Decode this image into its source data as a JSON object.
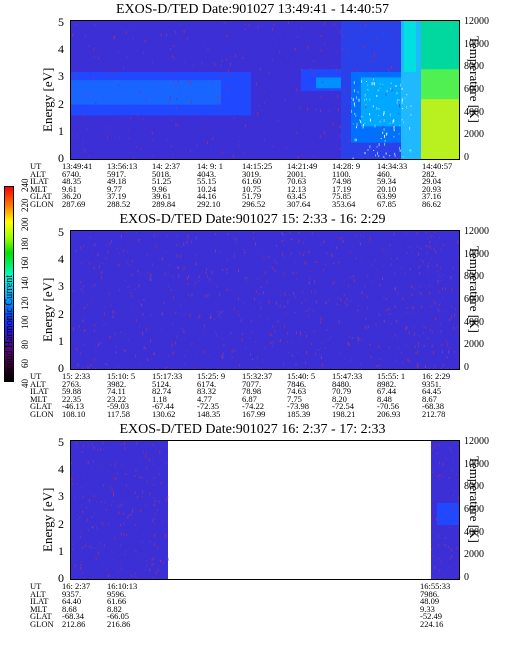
{
  "colorbar": {
    "label": "Second Harmonic Current",
    "ticks": [
      "40",
      "60",
      "80",
      "100",
      "120",
      "140",
      "160",
      "180",
      "200",
      "220",
      "240"
    ]
  },
  "panels": [
    {
      "title": "EXOS-D/TED   Date:901027  13:49:41 - 14:40:57",
      "ylabel": "Energy [eV]",
      "y2label": "Temperature [K]",
      "yticks": [
        "0",
        "1",
        "2",
        "3",
        "4",
        "5"
      ],
      "y2ticks": [
        "0",
        "2000",
        "4000",
        "6000",
        "8000",
        "10000",
        "12000"
      ],
      "orbit_labels": [
        "UT",
        "ALT",
        "ILAT",
        "MLT",
        "GLAT",
        "GLON"
      ],
      "orbit": [
        [
          "13:49:41",
          "6740.",
          "48.35",
          "9.61",
          "36.20",
          "287.69"
        ],
        [
          "13:56:13",
          "5917.",
          "49.18",
          "9.77",
          "37.19",
          "288.52"
        ],
        [
          "14: 2:37",
          "5018.",
          "51.25",
          "9.96",
          "39.61",
          "289.84"
        ],
        [
          "14: 9: 1",
          "4043.",
          "55.15",
          "10.24",
          "44.16",
          "292.10"
        ],
        [
          "14:15:25",
          "3019.",
          "61.60",
          "10.75",
          "51.79",
          "296.52"
        ],
        [
          "14:21:49",
          "2001.",
          "70.63",
          "12.13",
          "63.45",
          "307.64"
        ],
        [
          "14:28: 9",
          "1100.",
          "74.98",
          "17.19",
          "75.85",
          "353.64"
        ],
        [
          "14:34:33",
          "460.",
          "59.34",
          "20.10",
          "63.99",
          "67.85"
        ],
        [
          "14:40:57",
          "282.",
          "29.04",
          "20.93",
          "37.16",
          "86.62"
        ]
      ]
    },
    {
      "title": "EXOS-D/TED   Date:901027  15: 2:33 - 16: 2:29",
      "ylabel": "Energy [eV]",
      "y2label": "Temperature [K]",
      "yticks": [
        "0",
        "1",
        "2",
        "3",
        "4",
        "5"
      ],
      "y2ticks": [
        "0",
        "2000",
        "4000",
        "6000",
        "8000",
        "10000",
        "12000"
      ],
      "orbit_labels": [
        "UT",
        "ALT",
        "ILAT",
        "MLT",
        "GLAT",
        "GLON"
      ],
      "orbit": [
        [
          "15: 2:33",
          "2763.",
          "59.88",
          "22.35",
          "-46.13",
          "108.10"
        ],
        [
          "15:10: 5",
          "3982.",
          "74.11",
          "23.22",
          "-59.03",
          "117.58"
        ],
        [
          "15:17:33",
          "5124.",
          "82.74",
          "1.18",
          "-67.44",
          "130.62"
        ],
        [
          "15:25: 9",
          "6174.",
          "83.32",
          "4.77",
          "-72.35",
          "148.35"
        ],
        [
          "15:32:37",
          "7077.",
          "78.98",
          "6.87",
          "-74.22",
          "167.99"
        ],
        [
          "15:40: 5",
          "7846.",
          "74.63",
          "7.75",
          "-73.98",
          "185.39"
        ],
        [
          "15:47:33",
          "8480.",
          "70.79",
          "8.20",
          "-72.54",
          "198.21"
        ],
        [
          "15:55: 1",
          "8982.",
          "67.44",
          "8.48",
          "-70.56",
          "206.93"
        ],
        [
          "16: 2:29",
          "9351.",
          "64.45",
          "8.67",
          "-68.38",
          "212.78"
        ]
      ]
    },
    {
      "title": "EXOS-D/TED   Date:901027  16: 2:37 - 17: 2:33",
      "ylabel": "Energy [eV]",
      "y2label": "Temperature [K]",
      "yticks": [
        "0",
        "1",
        "2",
        "3",
        "4",
        "5"
      ],
      "y2ticks": [
        "0",
        "2000",
        "4000",
        "6000",
        "8000",
        "10000",
        "12000"
      ],
      "orbit_labels": [
        "UT",
        "ALT",
        "ILAT",
        "MLT",
        "GLAT",
        "GLON"
      ],
      "orbit": [
        [
          "16: 2:37",
          "9357.",
          "64.40",
          "8.68",
          "-68.34",
          "212.86"
        ],
        [
          "16:10:13",
          "9596.",
          "61.66",
          "8.82",
          "-66.05",
          "216.86"
        ],
        [
          "16:55:33",
          "7986.",
          "48.09",
          "9.33",
          "-52.49",
          "224.16"
        ]
      ]
    }
  ],
  "chart_data": [
    {
      "type": "heatmap",
      "title": "EXOS-D/TED   Date:901027  13:49:41 - 14:40:57",
      "ylabel": "Energy [eV]",
      "y2label": "Temperature [K]",
      "ylim": [
        0,
        5
      ],
      "y2lim": [
        0,
        12000
      ],
      "x": [
        "13:49:41",
        "13:56:13",
        "14: 2:37",
        "14: 9: 1",
        "14:15:25",
        "14:21:49",
        "14:28: 9",
        "14:34:33",
        "14:40:57"
      ],
      "colorbar_range": [
        40,
        240
      ]
    },
    {
      "type": "heatmap",
      "title": "EXOS-D/TED   Date:901027  15: 2:33 - 16: 2:29",
      "ylabel": "Energy [eV]",
      "y2label": "Temperature [K]",
      "ylim": [
        0,
        5
      ],
      "y2lim": [
        0,
        12000
      ],
      "x": [
        "15: 2:33",
        "15:10: 5",
        "15:17:33",
        "15:25: 9",
        "15:32:37",
        "15:40: 5",
        "15:47:33",
        "15:55: 1",
        "16: 2:29"
      ],
      "colorbar_range": [
        40,
        240
      ]
    },
    {
      "type": "heatmap",
      "title": "EXOS-D/TED   Date:901027  16: 2:37 - 17: 2:33",
      "ylabel": "Energy [eV]",
      "y2label": "Temperature [K]",
      "ylim": [
        0,
        5
      ],
      "y2lim": [
        0,
        12000
      ],
      "x": [
        "16: 2:37",
        "16:10:13",
        "16:55:33"
      ],
      "colorbar_range": [
        40,
        240
      ]
    }
  ]
}
